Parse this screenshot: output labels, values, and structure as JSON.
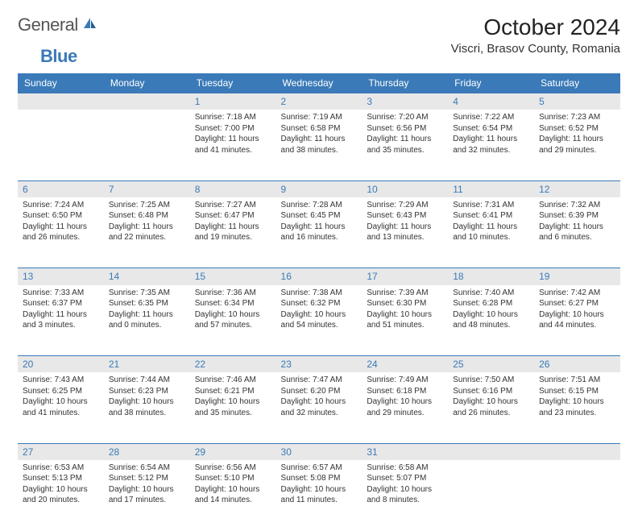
{
  "brand": {
    "part1": "General",
    "part2": "Blue"
  },
  "title": "October 2024",
  "location": "Viscri, Brasov County, Romania",
  "colors": {
    "accent": "#3a7ab8",
    "header_bg": "#3a7ab8",
    "daynum_bg": "#e8e8e8",
    "text": "#333333",
    "page_bg": "#ffffff"
  },
  "days_of_week": [
    "Sunday",
    "Monday",
    "Tuesday",
    "Wednesday",
    "Thursday",
    "Friday",
    "Saturday"
  ],
  "weeks": [
    [
      null,
      null,
      {
        "n": "1",
        "sunrise": "7:18 AM",
        "sunset": "7:00 PM",
        "daylight": "11 hours and 41 minutes."
      },
      {
        "n": "2",
        "sunrise": "7:19 AM",
        "sunset": "6:58 PM",
        "daylight": "11 hours and 38 minutes."
      },
      {
        "n": "3",
        "sunrise": "7:20 AM",
        "sunset": "6:56 PM",
        "daylight": "11 hours and 35 minutes."
      },
      {
        "n": "4",
        "sunrise": "7:22 AM",
        "sunset": "6:54 PM",
        "daylight": "11 hours and 32 minutes."
      },
      {
        "n": "5",
        "sunrise": "7:23 AM",
        "sunset": "6:52 PM",
        "daylight": "11 hours and 29 minutes."
      }
    ],
    [
      {
        "n": "6",
        "sunrise": "7:24 AM",
        "sunset": "6:50 PM",
        "daylight": "11 hours and 26 minutes."
      },
      {
        "n": "7",
        "sunrise": "7:25 AM",
        "sunset": "6:48 PM",
        "daylight": "11 hours and 22 minutes."
      },
      {
        "n": "8",
        "sunrise": "7:27 AM",
        "sunset": "6:47 PM",
        "daylight": "11 hours and 19 minutes."
      },
      {
        "n": "9",
        "sunrise": "7:28 AM",
        "sunset": "6:45 PM",
        "daylight": "11 hours and 16 minutes."
      },
      {
        "n": "10",
        "sunrise": "7:29 AM",
        "sunset": "6:43 PM",
        "daylight": "11 hours and 13 minutes."
      },
      {
        "n": "11",
        "sunrise": "7:31 AM",
        "sunset": "6:41 PM",
        "daylight": "11 hours and 10 minutes."
      },
      {
        "n": "12",
        "sunrise": "7:32 AM",
        "sunset": "6:39 PM",
        "daylight": "11 hours and 6 minutes."
      }
    ],
    [
      {
        "n": "13",
        "sunrise": "7:33 AM",
        "sunset": "6:37 PM",
        "daylight": "11 hours and 3 minutes."
      },
      {
        "n": "14",
        "sunrise": "7:35 AM",
        "sunset": "6:35 PM",
        "daylight": "11 hours and 0 minutes."
      },
      {
        "n": "15",
        "sunrise": "7:36 AM",
        "sunset": "6:34 PM",
        "daylight": "10 hours and 57 minutes."
      },
      {
        "n": "16",
        "sunrise": "7:38 AM",
        "sunset": "6:32 PM",
        "daylight": "10 hours and 54 minutes."
      },
      {
        "n": "17",
        "sunrise": "7:39 AM",
        "sunset": "6:30 PM",
        "daylight": "10 hours and 51 minutes."
      },
      {
        "n": "18",
        "sunrise": "7:40 AM",
        "sunset": "6:28 PM",
        "daylight": "10 hours and 48 minutes."
      },
      {
        "n": "19",
        "sunrise": "7:42 AM",
        "sunset": "6:27 PM",
        "daylight": "10 hours and 44 minutes."
      }
    ],
    [
      {
        "n": "20",
        "sunrise": "7:43 AM",
        "sunset": "6:25 PM",
        "daylight": "10 hours and 41 minutes."
      },
      {
        "n": "21",
        "sunrise": "7:44 AM",
        "sunset": "6:23 PM",
        "daylight": "10 hours and 38 minutes."
      },
      {
        "n": "22",
        "sunrise": "7:46 AM",
        "sunset": "6:21 PM",
        "daylight": "10 hours and 35 minutes."
      },
      {
        "n": "23",
        "sunrise": "7:47 AM",
        "sunset": "6:20 PM",
        "daylight": "10 hours and 32 minutes."
      },
      {
        "n": "24",
        "sunrise": "7:49 AM",
        "sunset": "6:18 PM",
        "daylight": "10 hours and 29 minutes."
      },
      {
        "n": "25",
        "sunrise": "7:50 AM",
        "sunset": "6:16 PM",
        "daylight": "10 hours and 26 minutes."
      },
      {
        "n": "26",
        "sunrise": "7:51 AM",
        "sunset": "6:15 PM",
        "daylight": "10 hours and 23 minutes."
      }
    ],
    [
      {
        "n": "27",
        "sunrise": "6:53 AM",
        "sunset": "5:13 PM",
        "daylight": "10 hours and 20 minutes."
      },
      {
        "n": "28",
        "sunrise": "6:54 AM",
        "sunset": "5:12 PM",
        "daylight": "10 hours and 17 minutes."
      },
      {
        "n": "29",
        "sunrise": "6:56 AM",
        "sunset": "5:10 PM",
        "daylight": "10 hours and 14 minutes."
      },
      {
        "n": "30",
        "sunrise": "6:57 AM",
        "sunset": "5:08 PM",
        "daylight": "10 hours and 11 minutes."
      },
      {
        "n": "31",
        "sunrise": "6:58 AM",
        "sunset": "5:07 PM",
        "daylight": "10 hours and 8 minutes."
      },
      null,
      null
    ]
  ],
  "labels": {
    "sunrise": "Sunrise:",
    "sunset": "Sunset:",
    "daylight": "Daylight:"
  }
}
